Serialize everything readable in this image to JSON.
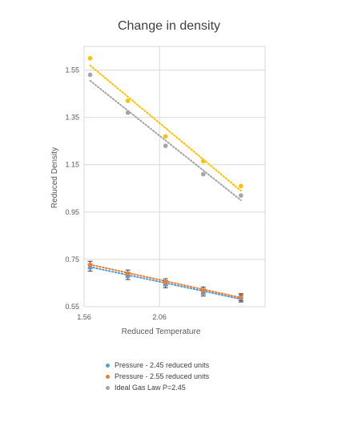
{
  "chart_data": {
    "type": "scatter",
    "title": "Change in density",
    "xlabel": "Reduced Temperature",
    "ylabel": "Reduced Density",
    "xlim": [
      1.56,
      2.76
    ],
    "ylim": [
      0.55,
      1.65
    ],
    "x_ticks": [
      "1.56",
      "2.06"
    ],
    "y_ticks": [
      "0.55",
      "0.75",
      "0.95",
      "1.15",
      "1.35",
      "1.55"
    ],
    "grid": true,
    "legend_position": "bottom",
    "series": [
      {
        "name": "Pressure - 2.45 reduced units",
        "color": "#5B9BD5",
        "x": [
          1.6,
          1.85,
          2.1,
          2.35,
          2.6
        ],
        "y": [
          0.715,
          0.68,
          0.645,
          0.61,
          0.585
        ],
        "error": 0.015,
        "trendline": [
          [
            1.6,
            0.718
          ],
          [
            2.6,
            0.582
          ]
        ]
      },
      {
        "name": "Pressure - 2.55 reduced units",
        "color": "#ED7D31",
        "x": [
          1.6,
          1.85,
          2.1,
          2.35,
          2.6
        ],
        "y": [
          0.727,
          0.69,
          0.653,
          0.618,
          0.59
        ],
        "error": 0.015,
        "trendline": [
          [
            1.6,
            0.728
          ],
          [
            2.6,
            0.588
          ]
        ]
      },
      {
        "name": "Ideal Gas Law P=2.45",
        "color": "#A5A5A5",
        "x": [
          1.6,
          1.85,
          2.1,
          2.35,
          2.6
        ],
        "y": [
          1.53,
          1.37,
          1.23,
          1.11,
          1.02
        ],
        "trendline": [
          [
            1.6,
            1.505
          ],
          [
            2.6,
            1.0
          ]
        ]
      },
      {
        "name": "",
        "color": "#FFC000",
        "x": [
          1.6,
          1.85,
          2.1,
          2.35,
          2.6
        ],
        "y": [
          1.6,
          1.42,
          1.27,
          1.165,
          1.06
        ],
        "trendline": [
          [
            1.6,
            1.57
          ],
          [
            2.6,
            1.04
          ]
        ]
      }
    ]
  }
}
